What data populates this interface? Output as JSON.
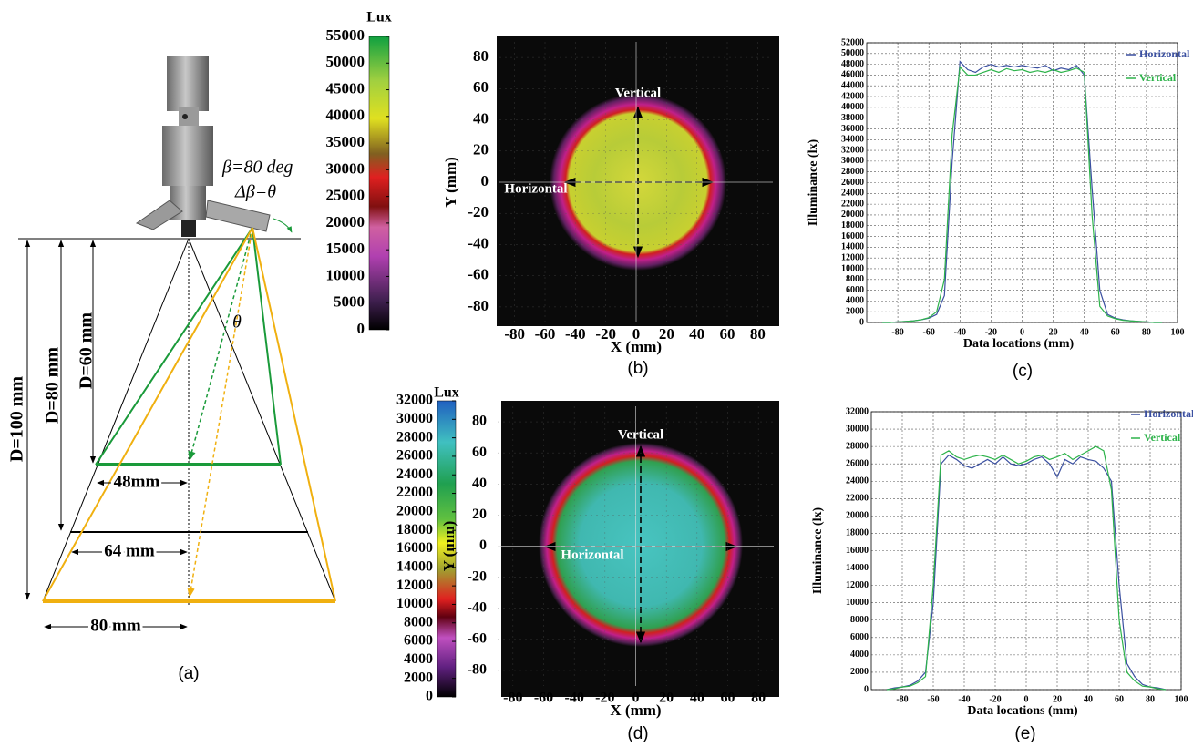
{
  "diagram": {
    "caption": "(a)",
    "beta": "β=80 deg",
    "delta_beta": "Δβ=θ",
    "theta": "θ",
    "d60": "D=60 mm",
    "d80": "D=80 mm",
    "d100": "D=100 mm",
    "w48": "48mm",
    "w64": "64 mm",
    "w80": "80 mm"
  },
  "chart_data": [
    {
      "type": "heatmap",
      "caption": "(b)",
      "colorbar_label": "Lux",
      "clim": [
        0,
        55000
      ],
      "colorbar_ticks": [
        0,
        5000,
        10000,
        15000,
        20000,
        25000,
        30000,
        35000,
        40000,
        45000,
        50000,
        55000
      ],
      "xlim": [
        -90,
        90
      ],
      "ylim": [
        -90,
        90
      ],
      "xticks": [
        -80,
        -60,
        -40,
        -20,
        0,
        20,
        40,
        60,
        80
      ],
      "yticks": [
        -80,
        -60,
        -40,
        -20,
        0,
        20,
        40,
        60,
        80
      ],
      "xlabel": "X (mm)",
      "ylabel": "Y (mm)",
      "annotations": [
        "Vertical",
        "Horizontal"
      ]
    },
    {
      "type": "line",
      "caption": "(c)",
      "xlabel": "Data locations (mm)",
      "ylabel": "Illuminance (lx)",
      "grid": true,
      "xlim": [
        -100,
        100
      ],
      "xticks": [
        -80,
        -60,
        -40,
        -20,
        0,
        20,
        40,
        60,
        80,
        100
      ],
      "ylim": [
        0,
        52000
      ],
      "yticks": [
        0,
        2000,
        4000,
        6000,
        8000,
        10000,
        12000,
        14000,
        16000,
        18000,
        20000,
        22000,
        24000,
        26000,
        28000,
        30000,
        32000,
        34000,
        36000,
        38000,
        40000,
        42000,
        44000,
        46000,
        48000,
        50000,
        52000
      ],
      "x": [
        -90,
        -85,
        -80,
        -75,
        -70,
        -65,
        -60,
        -55,
        -50,
        -45,
        -40,
        -35,
        -30,
        -25,
        -20,
        -15,
        -10,
        -5,
        0,
        5,
        10,
        15,
        20,
        25,
        30,
        35,
        40,
        45,
        50,
        55,
        60,
        65,
        70,
        75,
        80,
        85,
        90
      ],
      "series": [
        {
          "name": "Horizontal",
          "color": "#3a4fa0",
          "values": [
            0,
            0,
            100,
            200,
            300,
            500,
            800,
            1500,
            5000,
            30000,
            48500,
            47000,
            46500,
            47500,
            48000,
            47500,
            47800,
            47500,
            47800,
            47500,
            47300,
            47800,
            46800,
            47300,
            47000,
            47800,
            46000,
            25000,
            6000,
            1500,
            800,
            500,
            300,
            200,
            100,
            0,
            0
          ]
        },
        {
          "name": "Vertical",
          "color": "#2db34a",
          "values": [
            0,
            0,
            100,
            200,
            300,
            500,
            900,
            2000,
            8000,
            35000,
            47500,
            46000,
            46000,
            46500,
            47000,
            46500,
            47200,
            46800,
            47000,
            46500,
            46800,
            46500,
            47000,
            46500,
            46800,
            47300,
            46500,
            20000,
            3000,
            1200,
            700,
            400,
            300,
            200,
            100,
            0,
            0
          ]
        }
      ]
    },
    {
      "type": "heatmap",
      "caption": "(d)",
      "colorbar_label": "Lux",
      "clim": [
        0,
        32000
      ],
      "colorbar_ticks": [
        0,
        2000,
        4000,
        6000,
        8000,
        10000,
        12000,
        14000,
        16000,
        18000,
        20000,
        22000,
        24000,
        26000,
        28000,
        30000,
        32000
      ],
      "xlim": [
        -90,
        90
      ],
      "ylim": [
        -90,
        90
      ],
      "xticks": [
        -80,
        -60,
        -40,
        -20,
        0,
        20,
        40,
        60,
        80
      ],
      "yticks": [
        -80,
        -60,
        -40,
        -20,
        0,
        20,
        40,
        60,
        80
      ],
      "xlabel": "X (mm)",
      "ylabel": "Y (mm)",
      "annotations": [
        "Vertical",
        "Horizontal"
      ]
    },
    {
      "type": "line",
      "caption": "(e)",
      "xlabel": "Data locations (mm)",
      "ylabel": "Illuminance (lx)",
      "grid": true,
      "xlim": [
        -100,
        100
      ],
      "xticks": [
        -80,
        -60,
        -40,
        -20,
        0,
        20,
        40,
        60,
        80,
        100
      ],
      "ylim": [
        0,
        32000
      ],
      "yticks": [
        0,
        2000,
        4000,
        6000,
        8000,
        10000,
        12000,
        14000,
        16000,
        18000,
        20000,
        22000,
        24000,
        26000,
        28000,
        30000,
        32000
      ],
      "x": [
        -90,
        -85,
        -80,
        -75,
        -70,
        -65,
        -60,
        -55,
        -50,
        -45,
        -40,
        -35,
        -30,
        -25,
        -20,
        -15,
        -10,
        -5,
        0,
        5,
        10,
        15,
        20,
        25,
        30,
        35,
        40,
        45,
        50,
        55,
        60,
        65,
        70,
        75,
        80,
        85,
        90
      ],
      "series": [
        {
          "name": "Horizontal",
          "color": "#3a4fa0",
          "values": [
            0,
            200,
            300,
            500,
            1000,
            2000,
            10000,
            26000,
            27000,
            26500,
            25800,
            25500,
            26000,
            26500,
            26000,
            26800,
            26000,
            25800,
            26000,
            26500,
            26800,
            26000,
            24500,
            26500,
            26000,
            26800,
            26500,
            26300,
            25500,
            24000,
            12000,
            3000,
            1500,
            600,
            300,
            200,
            0
          ]
        },
        {
          "name": "Vertical",
          "color": "#2db34a",
          "values": [
            0,
            100,
            300,
            400,
            800,
            1500,
            12000,
            27000,
            27500,
            26800,
            26500,
            26800,
            27000,
            26800,
            26500,
            27000,
            26500,
            26000,
            26300,
            26800,
            27000,
            26500,
            26800,
            27200,
            26500,
            27000,
            27500,
            28000,
            27500,
            23000,
            8000,
            2000,
            1000,
            400,
            300,
            100,
            0
          ]
        }
      ]
    }
  ]
}
